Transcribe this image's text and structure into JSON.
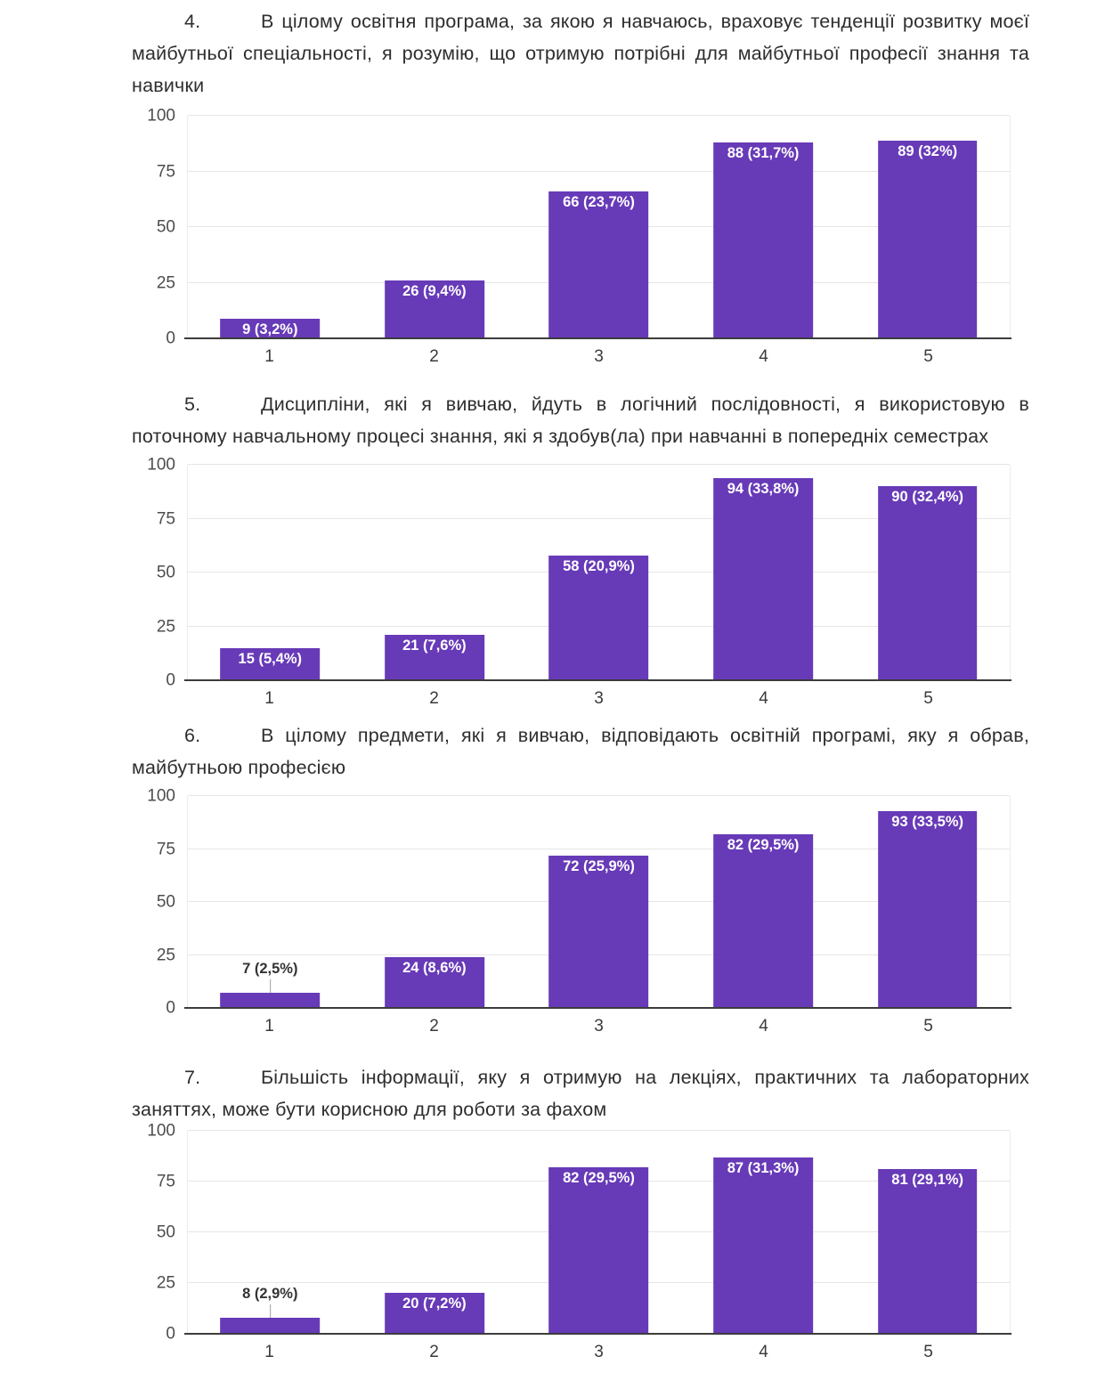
{
  "document": {
    "questions": [
      {
        "number": "4.",
        "text": "В цілому освітня програма, за якою я навчаюсь, враховує тенденції розвитку моєї майбутньої спеціальності, я розумію, що отримую потрібні для майбутньої професії знання та навички"
      },
      {
        "number": "5.",
        "text": "Дисципліни, які я вивчаю, йдуть в логічний послідовності, я використовую в поточному навчальному процесі знання, які я здобув(ла) при навчанні в попередніх семестрах"
      },
      {
        "number": "6.",
        "text": "В цілому предмети, які я вивчаю, відповідають освітній програмі, яку я обрав, майбутньою професією"
      },
      {
        "number": "7.",
        "text": "Більшість інформації, яку я отримую на лекціях, практичних та лабораторних заняттях, може бути корисною для роботи за фахом"
      }
    ]
  },
  "chart_style": {
    "bar_color": "#673ab7",
    "bar_label_color": "#ffffff",
    "outside_label_color": "#333333",
    "grid_color": "#e6e6e6",
    "axis_line_color": "#3c3c3c",
    "tick_label_color": "#4d4d4d",
    "x_label_color": "#3a3a3a",
    "leader_line_color": "#9e9e9e"
  },
  "chart_data": [
    {
      "type": "bar",
      "question": "4",
      "categories": [
        "1",
        "2",
        "3",
        "4",
        "5"
      ],
      "values": [
        9,
        26,
        66,
        88,
        89
      ],
      "data_labels": [
        "9 (3,2%)",
        "26 (9,4%)",
        "66 (23,7%)",
        "88 (31,7%)",
        "89 (32%)"
      ],
      "ylim": [
        0,
        100
      ],
      "yticks": [
        0,
        25,
        50,
        75,
        100
      ],
      "grid": true,
      "legend": "none"
    },
    {
      "type": "bar",
      "question": "5",
      "categories": [
        "1",
        "2",
        "3",
        "4",
        "5"
      ],
      "values": [
        15,
        21,
        58,
        94,
        90
      ],
      "data_labels": [
        "15 (5,4%)",
        "21 (7,6%)",
        "58 (20,9%)",
        "94 (33,8%)",
        "90 (32,4%)"
      ],
      "ylim": [
        0,
        100
      ],
      "yticks": [
        0,
        25,
        50,
        75,
        100
      ],
      "grid": true,
      "legend": "none"
    },
    {
      "type": "bar",
      "question": "6",
      "categories": [
        "1",
        "2",
        "3",
        "4",
        "5"
      ],
      "values": [
        7,
        24,
        72,
        82,
        93
      ],
      "data_labels": [
        "7 (2,5%)",
        "24 (8,6%)",
        "72 (25,9%)",
        "82 (29,5%)",
        "93 (33,5%)"
      ],
      "ylim": [
        0,
        100
      ],
      "yticks": [
        0,
        25,
        50,
        75,
        100
      ],
      "grid": true,
      "legend": "none"
    },
    {
      "type": "bar",
      "question": "7",
      "categories": [
        "1",
        "2",
        "3",
        "4",
        "5"
      ],
      "values": [
        8,
        20,
        82,
        87,
        81
      ],
      "data_labels": [
        "8 (2,9%)",
        "20 (7,2%)",
        "82 (29,5%)",
        "87 (31,3%)",
        "81 (29,1%)"
      ],
      "ylim": [
        0,
        100
      ],
      "yticks": [
        0,
        25,
        50,
        75,
        100
      ],
      "grid": true,
      "legend": "none"
    }
  ]
}
